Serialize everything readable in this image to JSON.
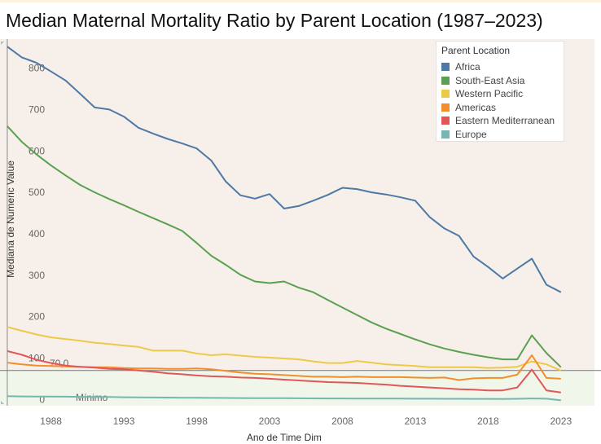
{
  "chart_data": {
    "type": "line",
    "title": "Median Maternal Mortality Ratio by Parent Location (1987–2023)",
    "xlabel": "Ano de Time Dim",
    "ylabel": "Mediana de Numeric Value",
    "xlim": [
      1984.5,
      2025.3
    ],
    "ylim": [
      -15,
      870
    ],
    "x_ticks": [
      1988,
      1993,
      1998,
      2003,
      2008,
      2013,
      2018,
      2023
    ],
    "y_ticks": [
      0,
      100,
      200,
      300,
      400,
      500,
      600,
      700,
      800
    ],
    "reference_line": {
      "value": 70,
      "label": "70,0",
      "band_label": "Mínimo"
    },
    "legend": {
      "title": "Parent Location",
      "placement": "top-right"
    },
    "x": [
      1985,
      1986,
      1987,
      1988,
      1989,
      1990,
      1991,
      1992,
      1993,
      1994,
      1995,
      1996,
      1997,
      1998,
      1999,
      2000,
      2001,
      2002,
      2003,
      2004,
      2005,
      2006,
      2007,
      2008,
      2009,
      2010,
      2011,
      2012,
      2013,
      2014,
      2015,
      2016,
      2017,
      2018,
      2019,
      2020,
      2021,
      2022,
      2023
    ],
    "series": [
      {
        "name": "Africa",
        "color": "#4e79a7",
        "values": [
          852,
          826,
          813,
          792,
          770,
          738,
          705,
          700,
          683,
          656,
          642,
          629,
          618,
          606,
          577,
          526,
          493,
          485,
          496,
          461,
          467,
          480,
          494,
          511,
          508,
          500,
          495,
          488,
          480,
          440,
          413,
          395,
          345,
          320,
          292,
          316,
          340,
          277,
          259
        ]
      },
      {
        "name": "South-East Asia",
        "color": "#59a14f",
        "values": [
          660,
          622,
          592,
          565,
          541,
          518,
          500,
          484,
          469,
          453,
          438,
          423,
          407,
          378,
          347,
          325,
          301,
          285,
          281,
          285,
          270,
          259,
          240,
          222,
          204,
          186,
          171,
          158,
          145,
          133,
          123,
          115,
          108,
          102,
          97,
          97,
          155,
          112,
          78
        ]
      },
      {
        "name": "Western Pacific",
        "color": "#edc948",
        "values": [
          175,
          166,
          157,
          150,
          146,
          142,
          137,
          134,
          130,
          127,
          118,
          118,
          118,
          111,
          107,
          109,
          106,
          103,
          101,
          99,
          97,
          92,
          88,
          88,
          93,
          89,
          85,
          83,
          81,
          78,
          78,
          78,
          78,
          76,
          77,
          79,
          92,
          85,
          70
        ]
      },
      {
        "name": "Americas",
        "color": "#f28e2b",
        "values": [
          89,
          85,
          82,
          81,
          80,
          79,
          78,
          78,
          76,
          75,
          75,
          74,
          74,
          75,
          73,
          69,
          65,
          62,
          61,
          59,
          57,
          55,
          55,
          54,
          55,
          54,
          54,
          54,
          53,
          52,
          53,
          47,
          51,
          52,
          52,
          60,
          107,
          52,
          50
        ]
      },
      {
        "name": "Eastern Mediterranean",
        "color": "#e15759",
        "values": [
          117,
          108,
          96,
          88,
          82,
          79,
          77,
          74,
          73,
          70,
          67,
          63,
          61,
          58,
          56,
          55,
          53,
          52,
          50,
          48,
          46,
          44,
          42,
          41,
          40,
          38,
          36,
          33,
          31,
          29,
          27,
          25,
          24,
          22,
          22,
          29,
          72,
          22,
          17
        ]
      },
      {
        "name": "Europe",
        "color": "#76b7b2",
        "values": [
          8,
          7.5,
          7,
          7,
          6.8,
          6.5,
          6.3,
          6,
          5.5,
          5.2,
          4.9,
          4.6,
          4.3,
          4,
          3.8,
          3.6,
          3.4,
          3.3,
          3.1,
          3,
          2.9,
          2.7,
          2.6,
          2.5,
          2.4,
          2.3,
          2.2,
          2.1,
          2,
          1.9,
          1.8,
          1.7,
          1.6,
          1.5,
          1.4,
          1.8,
          2.5,
          2,
          -2
        ]
      }
    ]
  }
}
